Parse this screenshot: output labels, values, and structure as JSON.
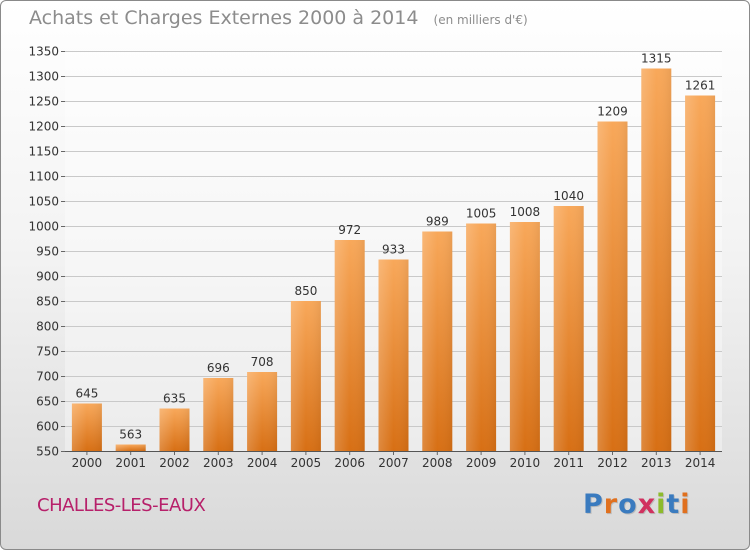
{
  "title": "Achats et Charges Externes 2000 à 2014",
  "subtitle": "(en milliers d'€)",
  "city": "CHALLES-LES-EAUX",
  "logo": {
    "text": "Proxiti",
    "letter_colors": [
      "#3a7bbf",
      "#e0701e",
      "#3a7bbf",
      "#d1315f",
      "#8dbb2c",
      "#3a7bbf",
      "#e0701e"
    ]
  },
  "colors": {
    "bar_light": "#f8a85a",
    "bar_dark": "#d76f14",
    "grid": "#c9c9c9",
    "axis_text": "#333333",
    "title": "#8c8c8c",
    "city": "#b7206a"
  },
  "chart_data": {
    "type": "bar",
    "title": "Achats et Charges Externes 2000 à 2014",
    "subtitle": "(en milliers d'€)",
    "categories": [
      "2000",
      "2001",
      "2002",
      "2003",
      "2004",
      "2005",
      "2006",
      "2007",
      "2008",
      "2009",
      "2010",
      "2011",
      "2012",
      "2013",
      "2014"
    ],
    "values": [
      645,
      563,
      635,
      696,
      708,
      850,
      972,
      933,
      989,
      1005,
      1008,
      1040,
      1209,
      1315,
      1261
    ],
    "ylim": [
      550,
      1350
    ],
    "ytick_step": 50,
    "grid": true,
    "xlabel": "",
    "ylabel": ""
  }
}
